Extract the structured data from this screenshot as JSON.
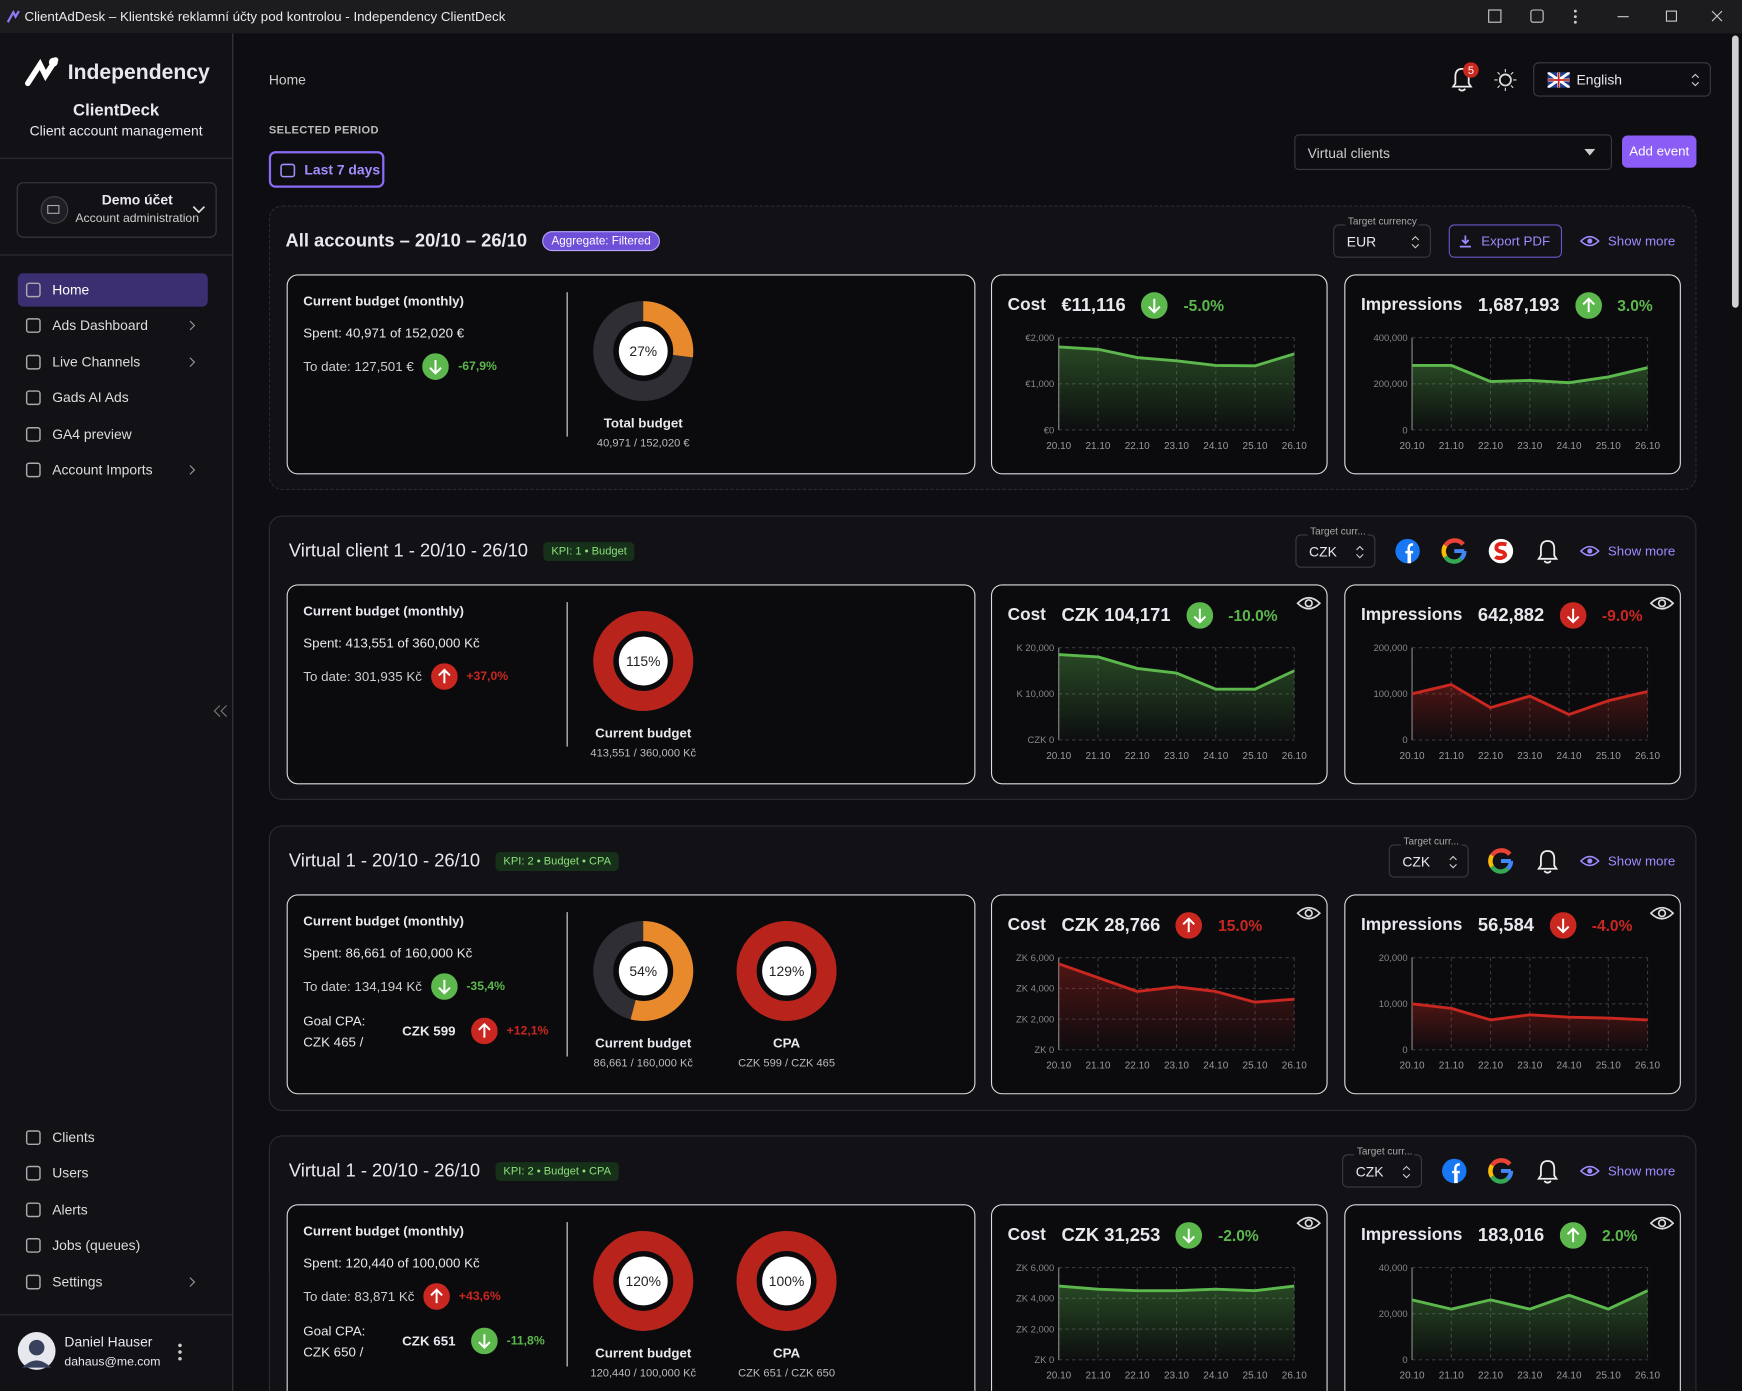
{
  "window": {
    "title": "ClientAdDesk – Klientské reklamní účty pod kontrolou - Independency ClientDeck"
  },
  "sidebar": {
    "brand": "Independency",
    "app_name": "ClientDeck",
    "tagline": "Client account management",
    "account": {
      "name": "Demo účet",
      "role": "Account administration"
    },
    "nav": [
      "Home",
      "Ads Dashboard",
      "Live Channels",
      "Gads AI Ads",
      "GA4 preview",
      "Account Imports"
    ],
    "bottom_nav": [
      "Clients",
      "Users",
      "Alerts",
      "Jobs (queues)",
      "Settings"
    ],
    "user": {
      "name": "Daniel Hauser",
      "email": "dahaus@me.com"
    }
  },
  "header": {
    "breadcrumb": "Home",
    "notifications": 5,
    "language": "English",
    "period_label": "SELECTED PERIOD",
    "period": "Last 7 days",
    "client_filter": "Virtual clients",
    "add_event": "Add event"
  },
  "dates": [
    "20.10",
    "21.10",
    "22.10",
    "23.10",
    "24.10",
    "25.10",
    "26.10"
  ],
  "sections": [
    {
      "title": "All accounts – 20/10 – 26/10",
      "badge": "Aggregate: Filtered",
      "currency_label": "Target currency",
      "currency": "EUR",
      "export": "Export PDF",
      "show_more": "Show more",
      "budget": {
        "title": "Current budget (monthly)",
        "spent": "Spent: 40,971 of 152,020 €",
        "to_date": "To date: 127,501 €",
        "change": "-67,9%",
        "trend": "down",
        "change_color": "#5cb84c",
        "donuts": [
          {
            "value": 27,
            "label": "27%",
            "name": "Total budget",
            "detail": "40,971 / 152,020 €",
            "color": "#e8892b"
          }
        ]
      },
      "charts": [
        {
          "type": "area",
          "title": "Cost",
          "total": "€11,116",
          "change": "-5.0%",
          "trend": "down",
          "change_color": "#5cb84c",
          "color": "#5cb84c",
          "ylim": [
            0,
            2000
          ],
          "yticks": [
            {
              "value": 0,
              "label": "€0"
            },
            {
              "value": 1000,
              "label": "€1,000"
            },
            {
              "value": 2000,
              "label": "€2,000"
            }
          ],
          "values": [
            1800,
            1750,
            1570,
            1500,
            1400,
            1390,
            1650
          ]
        },
        {
          "type": "area",
          "title": "Impressions",
          "total": "1,687,193",
          "change": "3.0%",
          "trend": "up",
          "change_color": "#5cb84c",
          "color": "#5cb84c",
          "ylim": [
            0,
            400000
          ],
          "yticks": [
            0,
            {
              "value": 200000,
              "label": "200,000"
            },
            {
              "value": 400000,
              "label": "400,000"
            }
          ],
          "values": [
            280000,
            280000,
            210000,
            215000,
            205000,
            230000,
            270000
          ]
        }
      ]
    },
    {
      "title": "Virtual client 1 - 20/10 - 26/10",
      "badge": "KPI: 1 • Budget",
      "currency_label": "Target curr...",
      "currency": "CZK",
      "show_more": "Show more",
      "budget": {
        "title": "Current budget (monthly)",
        "spent": "Spent: 413,551 of 360,000 Kč",
        "to_date": "To date: 301,935 Kč",
        "change": "+37,0%",
        "trend": "up",
        "change_color": "#c9271f",
        "donuts": [
          {
            "value": 115,
            "label": "115%",
            "name": "Current budget",
            "detail": "413,551 / 360,000 Kč",
            "color": "#b8241c"
          }
        ]
      },
      "charts": [
        {
          "type": "area",
          "title": "Cost",
          "total": "CZK 104,171",
          "change": "-10.0%",
          "trend": "down",
          "change_color": "#5cb84c",
          "color": "#5cb84c",
          "ylim": [
            0,
            20000
          ],
          "yticks": [
            {
              "value": 0,
              "label": "CZK 0"
            },
            {
              "value": 10000,
              "label": "K 10,000"
            },
            {
              "value": 20000,
              "label": "K 20,000"
            }
          ],
          "values": [
            18500,
            18000,
            15500,
            14500,
            11000,
            11000,
            15000
          ]
        },
        {
          "type": "area",
          "title": "Impressions",
          "total": "642,882",
          "change": "-9.0%",
          "trend": "down",
          "change_color": "#c9271f",
          "color": "#c9271f",
          "ylim": [
            0,
            200000
          ],
          "yticks": [
            0,
            {
              "value": 100000,
              "label": "100,000"
            },
            {
              "value": 200000,
              "label": "200,000"
            }
          ],
          "values": [
            100000,
            120000,
            70000,
            95000,
            55000,
            85000,
            105000
          ]
        }
      ]
    },
    {
      "title": "Virtual 1 - 20/10 - 26/10",
      "badge": "KPI: 2 • Budget • CPA",
      "currency_label": "Target curr...",
      "currency": "CZK",
      "show_more": "Show more",
      "budget": {
        "title": "Current budget (monthly)",
        "spent": "Spent: 86,661 of 160,000 Kč",
        "to_date": "To date: 134,194 Kč",
        "change": "-35,4%",
        "trend": "down",
        "change_color": "#5cb84c",
        "goal": {
          "label": "Goal CPA:",
          "target": "CZK 465 /",
          "actual": "CZK 599",
          "change": "+12,1%",
          "trend": "up",
          "change_color": "#c9271f"
        },
        "donuts": [
          {
            "value": 54,
            "label": "54%",
            "name": "Current budget",
            "detail": "86,661 / 160,000 Kč",
            "color": "#e8892b"
          },
          {
            "value": 129,
            "label": "129%",
            "name": "CPA",
            "detail": "CZK 599 / CZK 465",
            "color": "#b8241c"
          }
        ]
      },
      "charts": [
        {
          "type": "area",
          "title": "Cost",
          "total": "CZK 28,766",
          "change": "15.0%",
          "trend": "up",
          "change_color": "#c9271f",
          "color": "#c9271f",
          "ylim": [
            0,
            6000
          ],
          "yticks": [
            {
              "value": 0,
              "label": "ZK 0"
            },
            {
              "value": 2000,
              "label": "ZK 2,000"
            },
            {
              "value": 4000,
              "label": "ZK 4,000"
            },
            {
              "value": 6000,
              "label": "ZK 6,000"
            }
          ],
          "values": [
            5600,
            4700,
            3800,
            4100,
            3800,
            3100,
            3300
          ]
        },
        {
          "type": "area",
          "title": "Impressions",
          "total": "56,584",
          "change": "-4.0%",
          "trend": "down",
          "change_color": "#c9271f",
          "color": "#c9271f",
          "ylim": [
            0,
            20000
          ],
          "yticks": [
            0,
            {
              "value": 10000,
              "label": "10,000"
            },
            {
              "value": 20000,
              "label": "20,000"
            }
          ],
          "values": [
            10000,
            9000,
            6500,
            7600,
            7100,
            6900,
            6500
          ]
        }
      ]
    },
    {
      "title": "Virtual 1 - 20/10 - 26/10",
      "badge": "KPI: 2 • Budget • CPA",
      "currency_label": "Target curr...",
      "currency": "CZK",
      "show_more": "Show more",
      "budget": {
        "title": "Current budget (monthly)",
        "spent": "Spent: 120,440 of 100,000 Kč",
        "to_date": "To date: 83,871 Kč",
        "change": "+43,6%",
        "trend": "up",
        "change_color": "#c9271f",
        "goal": {
          "label": "Goal CPA:",
          "target": "CZK 650 /",
          "actual": "CZK 651",
          "change": "-11,8%",
          "trend": "down",
          "change_color": "#5cb84c"
        },
        "donuts": [
          {
            "value": 120,
            "label": "120%",
            "name": "Current budget",
            "detail": "120,440 / 100,000 Kč",
            "color": "#b8241c"
          },
          {
            "value": 100,
            "label": "100%",
            "name": "CPA",
            "detail": "CZK 651 / CZK 650",
            "color": "#b8241c"
          }
        ]
      },
      "charts": [
        {
          "type": "area",
          "title": "Cost",
          "total": "CZK 31,253",
          "change": "-2.0%",
          "trend": "down",
          "change_color": "#5cb84c",
          "color": "#5cb84c",
          "ylim": [
            0,
            6000
          ],
          "yticks": [
            {
              "value": 0,
              "label": "ZK 0"
            },
            {
              "value": 2000,
              "label": "ZK 2,000"
            },
            {
              "value": 4000,
              "label": "ZK 4,000"
            },
            {
              "value": 6000,
              "label": "ZK 6,000"
            }
          ],
          "values": [
            4800,
            4600,
            4500,
            4500,
            4600,
            4500,
            4800
          ]
        },
        {
          "type": "area",
          "title": "Impressions",
          "total": "183,016",
          "change": "2.0%",
          "trend": "up",
          "change_color": "#5cb84c",
          "color": "#5cb84c",
          "ylim": [
            0,
            40000
          ],
          "yticks": [
            0,
            {
              "value": 20000,
              "label": "20,000"
            },
            {
              "value": 40000,
              "label": "40,000"
            }
          ],
          "values": [
            26000,
            22000,
            26000,
            22000,
            28000,
            22000,
            30000
          ]
        }
      ]
    }
  ]
}
